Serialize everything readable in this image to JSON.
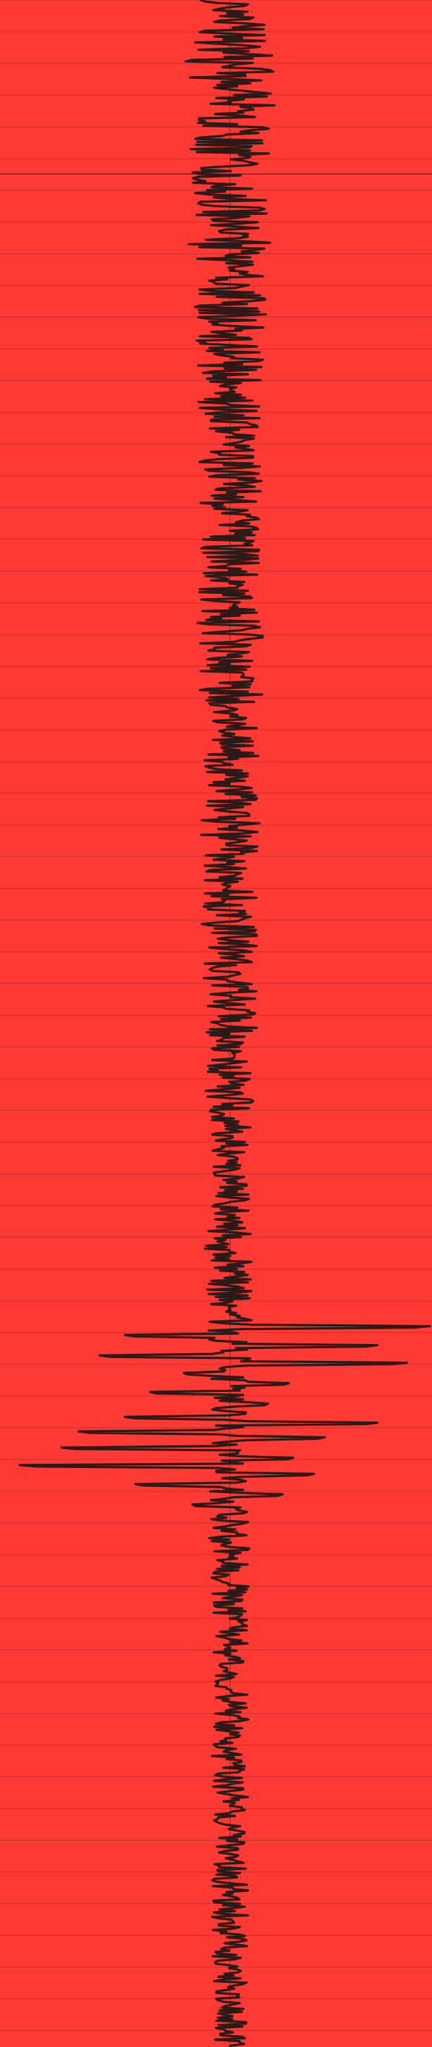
{
  "chart_data": {
    "type": "line",
    "orientation": "vertical",
    "title": "",
    "xlabel": "",
    "ylabel": "",
    "grid": true,
    "legend": "none",
    "colors": {
      "background": "#ff3a34",
      "trace": "#2b1a17",
      "grid": "#c8302b",
      "center_line": "#8a2420",
      "marker_line": "#5a1e1b"
    },
    "amplitude_range": [
      -1,
      1
    ],
    "time_range": [
      0,
      1
    ],
    "series": [
      {
        "name": "",
        "envelope": [
          [
            0.0,
            0.14
          ],
          [
            0.01,
            0.18
          ],
          [
            0.02,
            0.2
          ],
          [
            0.03,
            0.24
          ],
          [
            0.04,
            0.22
          ],
          [
            0.05,
            0.25
          ],
          [
            0.06,
            0.18
          ],
          [
            0.07,
            0.2
          ],
          [
            0.08,
            0.17
          ],
          [
            0.09,
            0.19
          ],
          [
            0.1,
            0.18
          ],
          [
            0.11,
            0.17
          ],
          [
            0.12,
            0.2
          ],
          [
            0.13,
            0.16
          ],
          [
            0.14,
            0.17
          ],
          [
            0.15,
            0.18
          ],
          [
            0.16,
            0.16
          ],
          [
            0.17,
            0.17
          ],
          [
            0.18,
            0.15
          ],
          [
            0.19,
            0.16
          ],
          [
            0.2,
            0.15
          ],
          [
            0.21,
            0.16
          ],
          [
            0.22,
            0.14
          ],
          [
            0.23,
            0.15
          ],
          [
            0.24,
            0.16
          ],
          [
            0.25,
            0.15
          ],
          [
            0.26,
            0.16
          ],
          [
            0.27,
            0.15
          ],
          [
            0.28,
            0.14
          ],
          [
            0.29,
            0.16
          ],
          [
            0.3,
            0.15
          ],
          [
            0.31,
            0.16
          ],
          [
            0.32,
            0.14
          ],
          [
            0.33,
            0.15
          ],
          [
            0.34,
            0.16
          ],
          [
            0.35,
            0.15
          ],
          [
            0.36,
            0.14
          ],
          [
            0.37,
            0.15
          ],
          [
            0.38,
            0.14
          ],
          [
            0.39,
            0.13
          ],
          [
            0.4,
            0.15
          ],
          [
            0.41,
            0.14
          ],
          [
            0.42,
            0.13
          ],
          [
            0.43,
            0.14
          ],
          [
            0.44,
            0.13
          ],
          [
            0.45,
            0.14
          ],
          [
            0.46,
            0.13
          ],
          [
            0.47,
            0.12
          ],
          [
            0.48,
            0.13
          ],
          [
            0.49,
            0.12
          ],
          [
            0.5,
            0.13
          ],
          [
            0.51,
            0.12
          ],
          [
            0.52,
            0.11
          ],
          [
            0.53,
            0.12
          ],
          [
            0.54,
            0.11
          ],
          [
            0.55,
            0.1
          ],
          [
            0.56,
            0.09
          ],
          [
            0.57,
            0.08
          ],
          [
            0.58,
            0.09
          ],
          [
            0.59,
            0.1
          ],
          [
            0.6,
            0.1
          ],
          [
            0.61,
            0.12
          ],
          [
            0.62,
            0.1
          ],
          [
            0.63,
            0.11
          ],
          [
            0.64,
            0.1
          ],
          [
            0.65,
            0.11
          ],
          [
            0.66,
            0.1
          ],
          [
            0.67,
            0.1
          ],
          [
            0.68,
            0.09
          ],
          [
            0.69,
            0.1
          ],
          [
            0.7,
            0.09
          ],
          [
            0.71,
            0.1
          ],
          [
            0.72,
            0.09
          ],
          [
            0.73,
            0.1
          ],
          [
            0.74,
            0.09
          ],
          [
            0.75,
            0.1
          ],
          [
            0.76,
            0.09
          ],
          [
            0.77,
            0.1
          ],
          [
            0.78,
            0.09
          ],
          [
            0.79,
            0.08
          ],
          [
            0.8,
            0.09
          ],
          [
            0.81,
            0.08
          ],
          [
            0.82,
            0.09
          ],
          [
            0.83,
            0.08
          ],
          [
            0.84,
            0.09
          ],
          [
            0.85,
            0.08
          ],
          [
            0.86,
            0.09
          ],
          [
            0.87,
            0.08
          ],
          [
            0.88,
            0.09
          ],
          [
            0.89,
            0.08
          ],
          [
            0.9,
            0.09
          ],
          [
            0.91,
            0.08
          ],
          [
            0.92,
            0.09
          ],
          [
            0.93,
            0.08
          ],
          [
            0.94,
            0.09
          ],
          [
            0.95,
            0.08
          ],
          [
            0.96,
            0.09
          ],
          [
            0.97,
            0.08
          ],
          [
            0.98,
            0.07
          ],
          [
            0.99,
            0.08
          ],
          [
            1.0,
            0.07
          ]
        ],
        "excursions": [
          {
            "t": 0.648,
            "a": 0.95
          },
          {
            "t": 0.652,
            "a": -0.5
          },
          {
            "t": 0.657,
            "a": 0.7
          },
          {
            "t": 0.662,
            "a": -0.62
          },
          {
            "t": 0.666,
            "a": 0.84
          },
          {
            "t": 0.671,
            "a": -0.22
          },
          {
            "t": 0.676,
            "a": 0.28
          },
          {
            "t": 0.68,
            "a": -0.38
          },
          {
            "t": 0.686,
            "a": 0.18
          },
          {
            "t": 0.692,
            "a": -0.5
          },
          {
            "t": 0.695,
            "a": 0.7
          },
          {
            "t": 0.699,
            "a": -0.72
          },
          {
            "t": 0.702,
            "a": 0.45
          },
          {
            "t": 0.707,
            "a": -0.8
          },
          {
            "t": 0.712,
            "a": 0.3
          },
          {
            "t": 0.716,
            "a": -1.0
          },
          {
            "t": 0.72,
            "a": 0.4
          },
          {
            "t": 0.725,
            "a": -0.45
          },
          {
            "t": 0.73,
            "a": 0.25
          },
          {
            "t": 0.735,
            "a": -0.18
          }
        ]
      }
    ],
    "center_line_at": 0.0,
    "marker_line_at_time": 0.085,
    "grid_spacing_time": 0.0155
  }
}
